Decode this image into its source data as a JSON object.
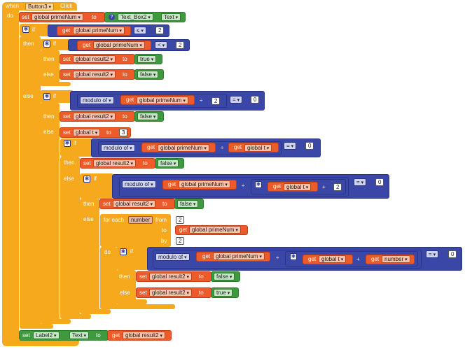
{
  "event": {
    "when": "when",
    "component": "Button3",
    "event_name": "Click",
    "do": "do"
  },
  "kw": {
    "set": "set",
    "get": "get",
    "to": "to",
    "if": "if",
    "then": "then",
    "else": "else",
    "modulo_of": "modulo of",
    "for_each": "for each",
    "from": "from",
    "by": "by"
  },
  "vars": {
    "primeNum": "global primeNum",
    "result2": "global result2",
    "t": "global t"
  },
  "loop_var": "number",
  "components": {
    "textbox": "Text_Box2",
    "label": "Label2",
    "text_prop": "Text"
  },
  "ops": {
    "le": "≤",
    "lt": "<",
    "eq": "=",
    "div": "÷",
    "plus": "+"
  },
  "values": {
    "two": "2",
    "zero": "0",
    "three": "3",
    "true_val": "true",
    "false_val": "false"
  },
  "colors": {
    "event_block": "#f6a91c",
    "logic_block": "#3b47a6",
    "variable_block": "#ec5b29",
    "component_block": "#3f9a3f"
  }
}
